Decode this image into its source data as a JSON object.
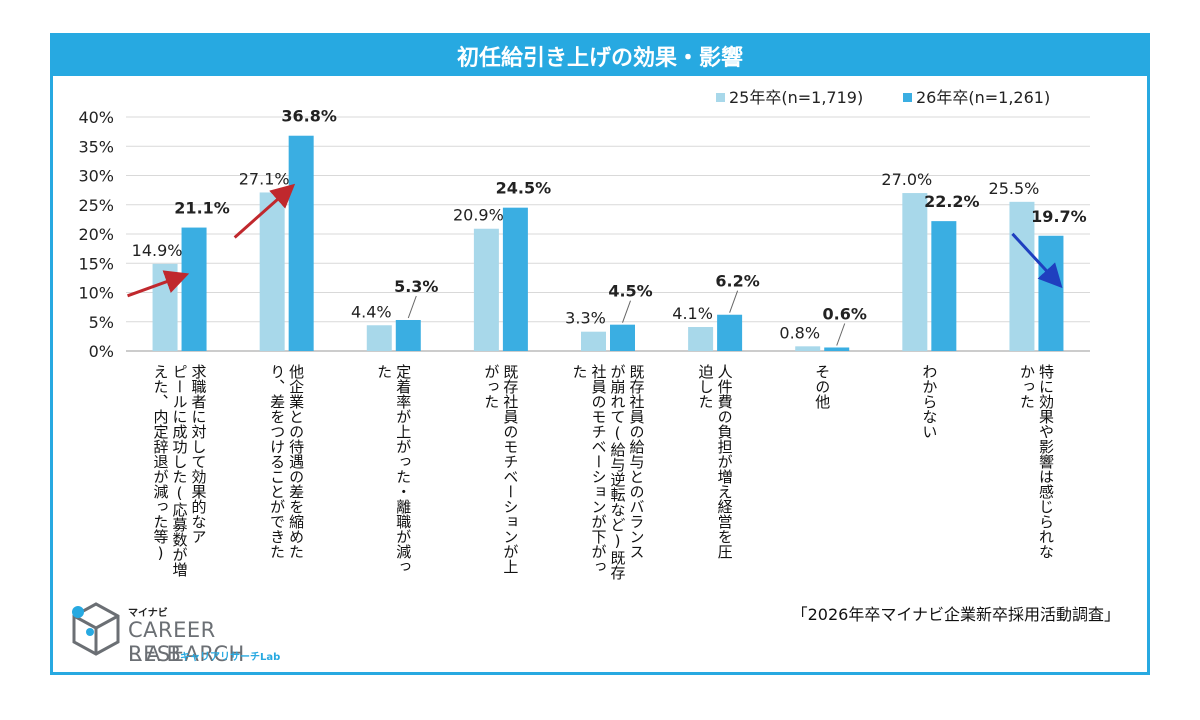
{
  "chart_data": {
    "type": "bar",
    "title": "初任給引き上げの効果・影響",
    "categories": [
      "求職者に対して効果的なアピールに成功した(応募数が増えた、内定辞退が減った等)",
      "他企業との待遇の差を縮めたり、差をつけることができた",
      "定着率が上がった・離職が減った",
      "既存社員のモチベーションが上がった",
      "既存社員の給与とのバランスが崩れて(給与逆転など)既存社員のモチベーションが下がった",
      "人件費の負担が増え経営を圧迫した",
      "その他",
      "わからない",
      "特に効果や影響は感じられなかった"
    ],
    "category_lines": [
      [
        "求職者に対して効果的なア",
        "ピールに成功した(応募数が増",
        "えた、内定辞退が減った等)"
      ],
      [
        "他企業との待遇の差を縮めた",
        "り、差をつけることができた"
      ],
      [
        "定着率が上がった・離職が減っ",
        "た"
      ],
      [
        "既存社員のモチベーションが上",
        "がった"
      ],
      [
        "既存社員の給与とのバランス",
        "が崩れて(給与逆転など)既存",
        "社員のモチベーションが下がっ",
        "た"
      ],
      [
        "人件費の負担が増え経営を圧",
        "迫した"
      ],
      [
        "その他"
      ],
      [
        "わからない"
      ],
      [
        "特に効果や影響は感じられな",
        "かった"
      ]
    ],
    "series": [
      {
        "name": "25年卒(n=1,719)",
        "color": "#a8d8ea",
        "values": [
          14.9,
          27.1,
          4.4,
          20.9,
          3.3,
          4.1,
          0.8,
          27.0,
          25.5
        ],
        "labels": [
          "14.9%",
          "27.1%",
          "4.4%",
          "20.9%",
          "3.3%",
          "4.1%",
          "0.8%",
          "27.0%",
          "25.5%"
        ]
      },
      {
        "name": "26年卒(n=1,261)",
        "color": "#3aaee2",
        "values": [
          21.1,
          36.8,
          5.3,
          24.5,
          4.5,
          6.2,
          0.6,
          22.2,
          19.7
        ],
        "labels": [
          "21.1%",
          "36.8%",
          "5.3%",
          "24.5%",
          "4.5%",
          "6.2%",
          "0.6%",
          "22.2%",
          "19.7%"
        ]
      }
    ],
    "ylim": [
      0,
      40
    ],
    "yticks": [
      "0%",
      "5%",
      "10%",
      "15%",
      "20%",
      "25%",
      "30%",
      "35%",
      "40%"
    ],
    "grid": true,
    "legend_position": "top-right",
    "arrows": [
      {
        "category_index": 0,
        "direction": "up",
        "color": "#c0282d"
      },
      {
        "category_index": 1,
        "direction": "up",
        "color": "#c0282d"
      },
      {
        "category_index": 8,
        "direction": "down",
        "color": "#1f3fbf"
      }
    ]
  },
  "source": "「2026年卒マイナビ企業新卒採用活動調査」",
  "logo": {
    "small": "マイナビ",
    "main": "CAREER RESEARCH",
    "lab": "LAB",
    "sub": "キャリアリサーチLab"
  }
}
